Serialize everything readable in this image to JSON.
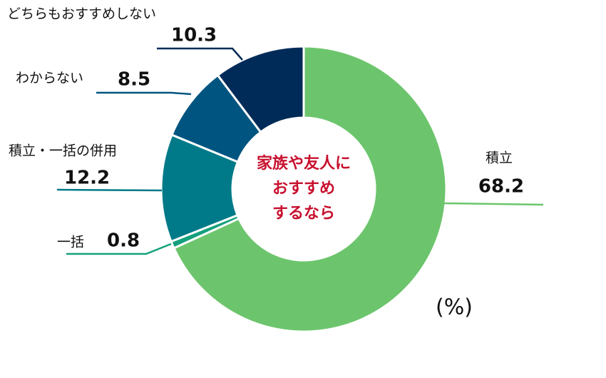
{
  "chart_data": {
    "type": "donut",
    "categories": [
      "積立",
      "一括",
      "積立・一括の併用",
      "わからない",
      "どちらもおすすめしない"
    ],
    "values": [
      68.2,
      0.8,
      12.2,
      8.5,
      10.3
    ],
    "colors": [
      "#6cc56c",
      "#14a07c",
      "#007a88",
      "#005580",
      "#002b58"
    ],
    "center_text": [
      "家族や友人に",
      "おすすめ",
      "するなら"
    ],
    "unit_label": "(%)"
  }
}
